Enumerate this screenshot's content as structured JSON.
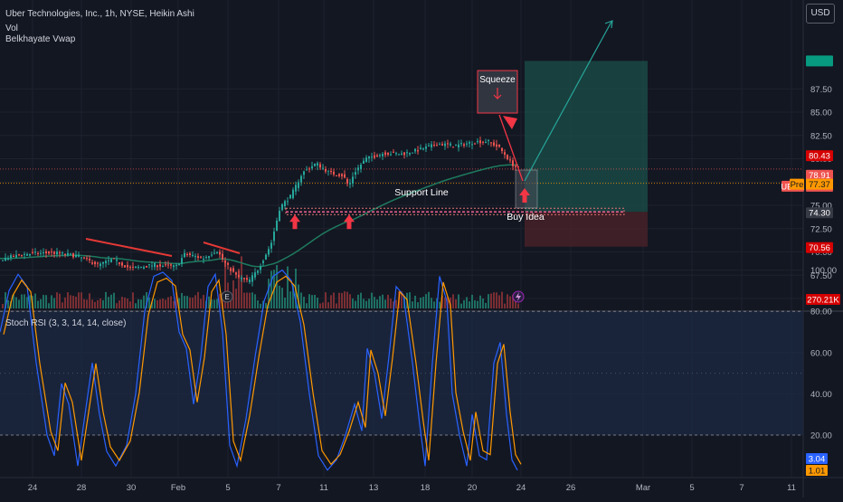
{
  "header": {
    "symbol_title": "Uber Technologies, Inc., 1h, NYSE, Heikin Ashi",
    "indicator_vol": "Vol",
    "indicator_vwap": "Belkhayate Vwap",
    "currency_button": "USD"
  },
  "oscillator": {
    "title": "Stoch RSI (3, 3, 14, 14, close)",
    "levels": [
      80,
      20
    ],
    "k_last": "3.04",
    "d_last": "1.01"
  },
  "colors": {
    "background": "#131722",
    "grid": "#1e222d",
    "up": "#26a69a",
    "down": "#ef5350",
    "vwap": "#1e7a5e",
    "target_zone": "#1b4f4a",
    "stop_zone": "#4a2229",
    "k_line": "#2962ff",
    "d_line": "#ff9800",
    "osc_band": "#1c2a44",
    "annotation": "#f23645"
  },
  "chart_data": [
    {
      "type": "candlestick",
      "title": "Uber Technologies, Inc., 1h, NYSE, Heikin Ashi",
      "series": [
        {
          "name": "Vol"
        },
        {
          "name": "Belkhayate Vwap"
        }
      ],
      "x_tick_labels": [
        "24",
        "28",
        "30",
        "Feb",
        "5",
        "7",
        "11",
        "13",
        "18",
        "20",
        "24",
        "26",
        "Mar",
        "5",
        "7",
        "11"
      ],
      "y_tick_labels": [
        "87.50",
        "85.00",
        "82.50",
        "80.00",
        "77.50",
        "75.00",
        "72.50",
        "70.00",
        "67.50",
        "65.00"
      ],
      "ylim": [
        63.6,
        91.2
      ],
      "price_labels": [
        {
          "label": "80.43",
          "value": 80.43
        },
        {
          "label": "78.91",
          "value": 78.91
        },
        {
          "label": "UBER",
          "value": 78.89
        },
        {
          "label": "78.89",
          "value": 78.89
        },
        {
          "label": "Pre",
          "value": 77.37
        },
        {
          "label": "77.37",
          "value": 77.37
        },
        {
          "label": "74.30",
          "value": 74.3
        },
        {
          "label": "70.56",
          "value": 70.56
        }
      ],
      "volume_last_label": "270.21K",
      "annotations": [
        "Squeeze",
        "Support Line",
        "Buy Idea"
      ],
      "support_level": 74.3,
      "buy_entry": 74.3,
      "target": 90.5,
      "stop": 70.56
    },
    {
      "type": "line",
      "title": "Stoch RSI (3, 3, 14, 14, close)",
      "y_tick_labels": [
        "100.00",
        "80.00",
        "60.00",
        "40.00",
        "20.00"
      ],
      "ylim": [
        -6,
        106
      ],
      "series": [
        {
          "name": "K",
          "last": 3.04
        },
        {
          "name": "D",
          "last": 1.01
        }
      ]
    }
  ]
}
